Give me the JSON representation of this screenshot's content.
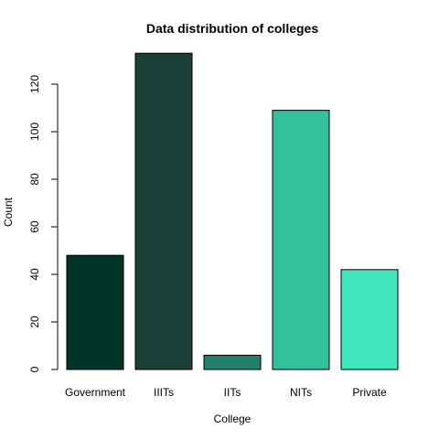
{
  "chart_data": {
    "type": "bar",
    "title": "Data distribution of colleges",
    "xlabel": "College",
    "ylabel": "Count",
    "categories": [
      "Government",
      "IIITs",
      "IITs",
      "NITs",
      "Private"
    ],
    "values": [
      48,
      133,
      6,
      109,
      42
    ],
    "colors": [
      "#02342a",
      "#193f37",
      "#22806a",
      "#34c09a",
      "#40e6bc"
    ],
    "ylim": [
      0,
      140
    ],
    "yticks": [
      0,
      20,
      40,
      60,
      80,
      100,
      120
    ],
    "grid": false,
    "legend": "none"
  }
}
